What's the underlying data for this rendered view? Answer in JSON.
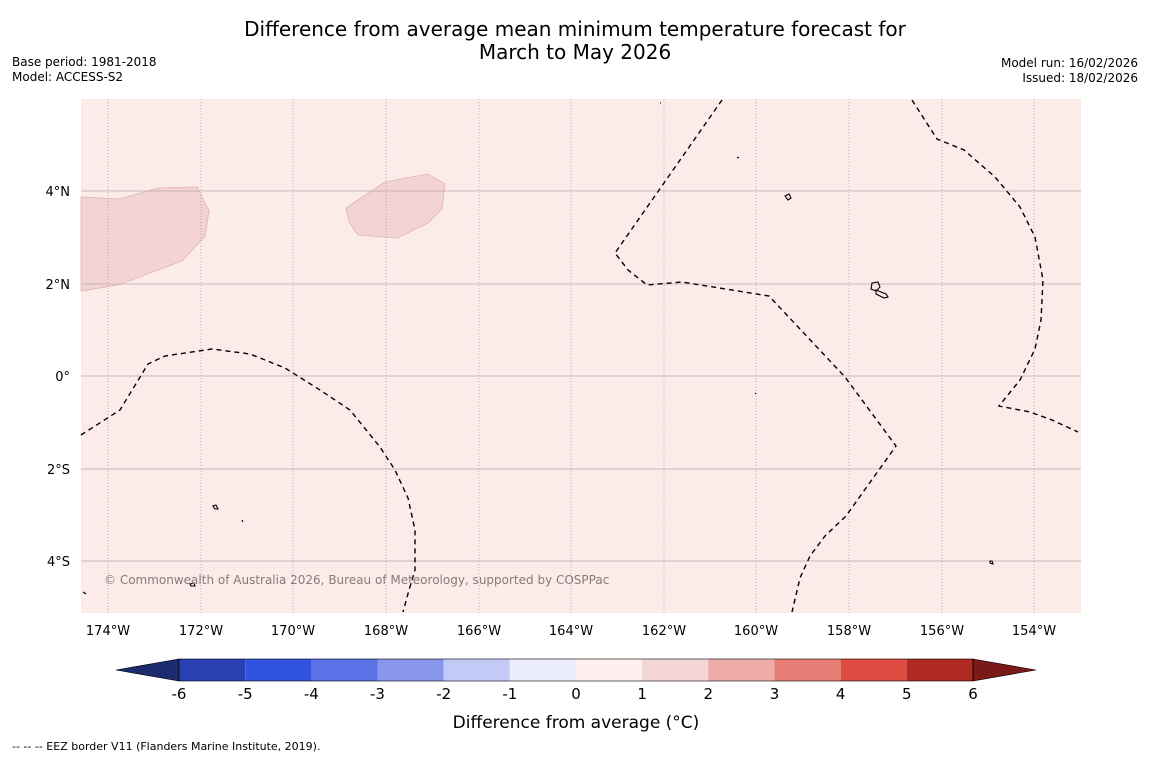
{
  "title": {
    "line1": "Difference from average mean minimum temperature forecast for",
    "line2": "March to May 2026"
  },
  "meta": {
    "base_period": "Base period: 1981-2018",
    "model": "Model: ACCESS-S2",
    "model_run": "Model run: 16/02/2026",
    "issued": "Issued: 18/02/2026"
  },
  "map": {
    "lon_labels": [
      "174°W",
      "172°W",
      "170°W",
      "168°W",
      "166°W",
      "164°W",
      "162°W",
      "160°W",
      "158°W",
      "156°W",
      "154°W"
    ],
    "lat_labels": [
      "4°N",
      "2°N",
      "0°",
      "2°S",
      "4°S"
    ],
    "copyright": "© Commonwealth of Australia 2026, Bureau of Meteorology, supported by COSPPac",
    "colors": {
      "background": "#fbebe9",
      "anomaly_1_2": "#f3d4d2"
    }
  },
  "colorbar": {
    "label": "Difference from average (°C)",
    "ticks": [
      "-6",
      "-5",
      "-4",
      "-3",
      "-2",
      "-1",
      "0",
      "1",
      "2",
      "3",
      "4",
      "5",
      "6"
    ],
    "colors": [
      "#1c2a6e",
      "#2a40b2",
      "#3252e2",
      "#5a72e6",
      "#8896ec",
      "#c4caf6",
      "#eceefc",
      "#fdf0ee",
      "#f4d6d4",
      "#eeaca8",
      "#e67e76",
      "#de4c42",
      "#b02a24",
      "#7a1a18"
    ]
  },
  "footer": "--  --  -- EEZ border V11 (Flanders Marine Institute, 2019)."
}
